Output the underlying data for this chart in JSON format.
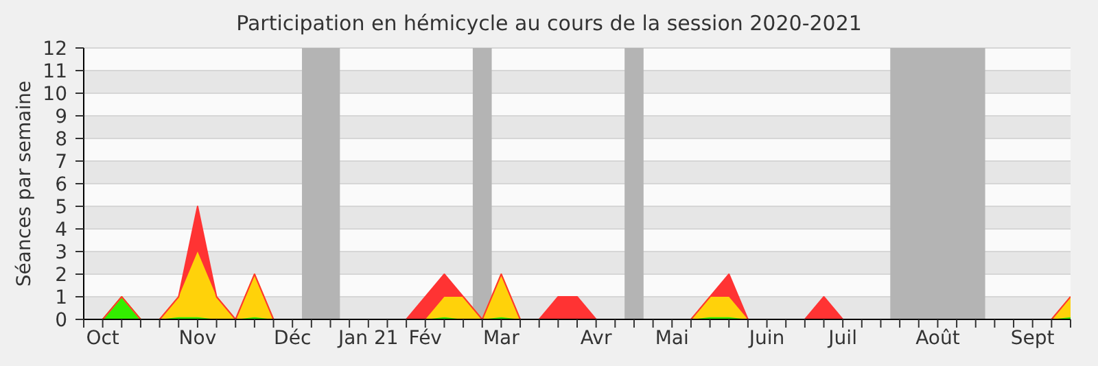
{
  "chart_data": {
    "type": "area",
    "title": "Participation en hémicycle au cours de la session 2020-2021",
    "ylabel": "Séances par semaine",
    "stacked": true,
    "grid": "y",
    "legend": false,
    "categories": [
      null,
      "Oct",
      null,
      null,
      null,
      null,
      "Nov",
      null,
      null,
      null,
      null,
      "Déc",
      null,
      null,
      null,
      "Jan 21",
      null,
      null,
      "Fév",
      null,
      null,
      null,
      "Mar",
      null,
      null,
      null,
      null,
      "Avr",
      null,
      null,
      null,
      "Mai",
      null,
      null,
      null,
      null,
      "Juin",
      null,
      null,
      null,
      "Juil",
      null,
      null,
      null,
      null,
      "Août",
      null,
      null,
      null,
      null,
      "Sept",
      null,
      null
    ],
    "ylim": [
      0,
      12
    ],
    "yticks": [
      0,
      1,
      2,
      3,
      4,
      5,
      6,
      7,
      8,
      9,
      10,
      11,
      12
    ],
    "series": [
      {
        "color": "#33ee00",
        "values": [
          0,
          0,
          1,
          0,
          0,
          0.1,
          0.1,
          0,
          0,
          0.1,
          0,
          0,
          0,
          0,
          0,
          0,
          0,
          0,
          0,
          0.1,
          0,
          0,
          0.1,
          0,
          0,
          0,
          0,
          0,
          0,
          0,
          0,
          0,
          0,
          0.1,
          0.1,
          0,
          0,
          0,
          0,
          0,
          0,
          0,
          0,
          0,
          0,
          0,
          0,
          0,
          0,
          0,
          0,
          0,
          0.1
        ]
      },
      {
        "color": "#ffd20a",
        "values": [
          0,
          0,
          0,
          0,
          0,
          0.9,
          2.9,
          1,
          0,
          1.9,
          0,
          0,
          0,
          0,
          0,
          0,
          0,
          0,
          0,
          0.9,
          1,
          0,
          1.9,
          0,
          0,
          0,
          0,
          0,
          0,
          0,
          0,
          0,
          0,
          0.9,
          0.9,
          0,
          0,
          0,
          0,
          0,
          0,
          0,
          0,
          0,
          0,
          0,
          0,
          0,
          0,
          0,
          0,
          0,
          0.9
        ]
      },
      {
        "color": "#ff3333",
        "values": [
          0,
          0,
          0,
          0,
          0,
          0,
          2,
          0,
          0,
          0,
          0,
          0,
          0,
          0,
          0,
          0,
          0,
          0,
          1,
          1,
          0,
          0,
          0,
          0,
          0,
          1,
          1,
          0,
          0,
          0,
          0,
          0,
          0,
          0,
          1,
          0,
          0,
          0,
          0,
          1,
          0,
          0,
          0,
          0,
          0,
          0,
          0,
          0,
          0,
          0,
          0,
          0,
          0
        ]
      }
    ]
  }
}
